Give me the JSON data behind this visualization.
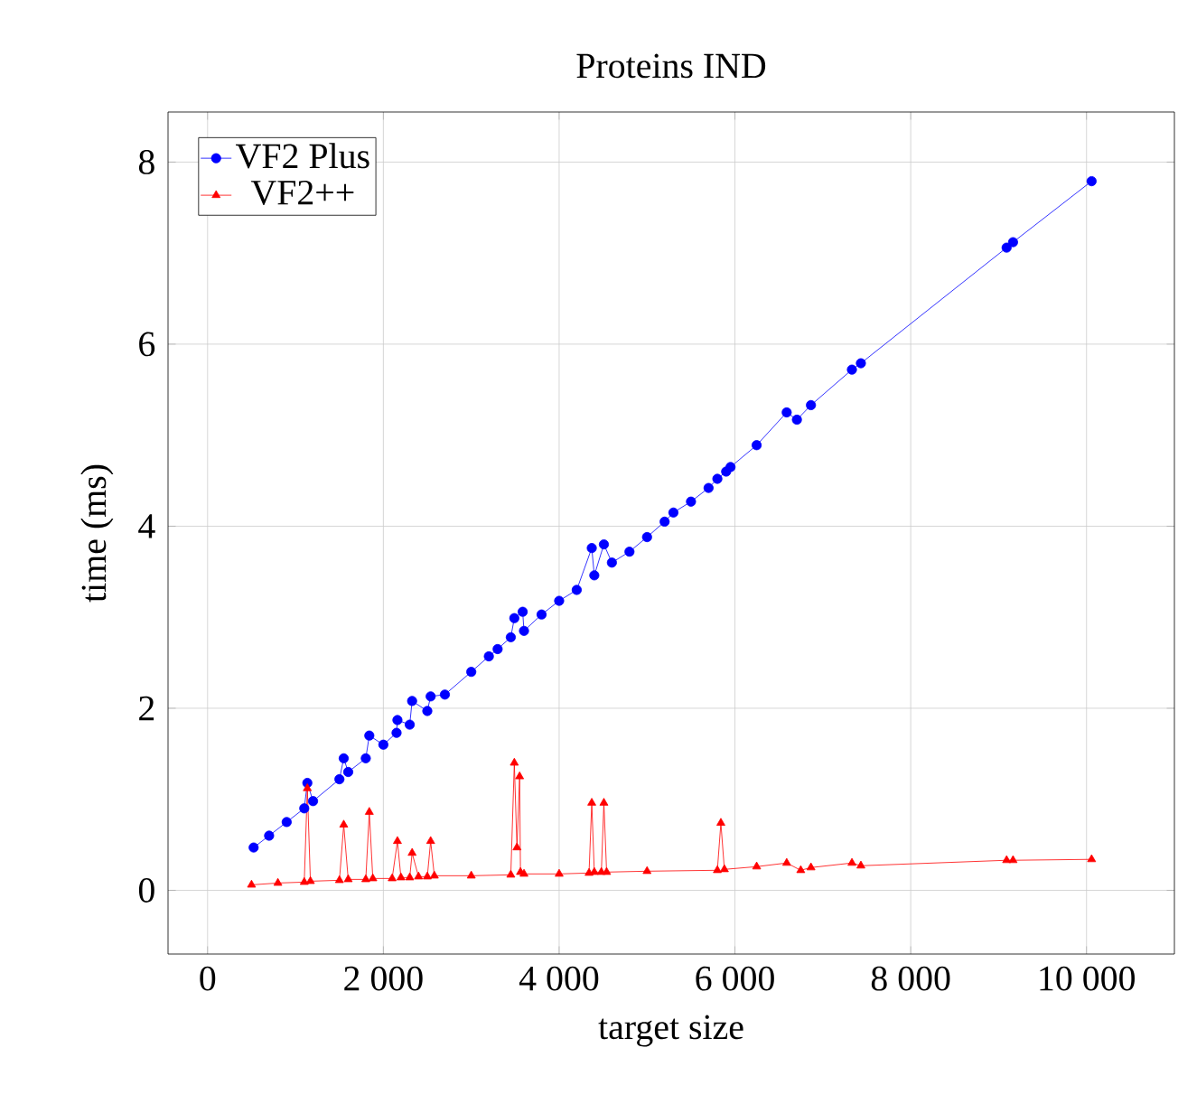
{
  "chart_data": {
    "type": "line",
    "title": "Proteins IND",
    "xlabel": "target size",
    "ylabel": "time (ms)",
    "xlim": [
      -450,
      11000
    ],
    "ylim": [
      -0.7,
      8.55
    ],
    "xticks": [
      0,
      {
        "value": 2000,
        "label": "2 000"
      },
      {
        "value": 4000,
        "label": "4 000"
      },
      {
        "value": 6000,
        "label": "6 000"
      },
      {
        "value": 8000,
        "label": "8 000"
      },
      {
        "value": 10000,
        "label": "10 000"
      }
    ],
    "yticks": [
      0,
      2,
      4,
      6,
      8
    ],
    "grid": true,
    "legend": "top left",
    "series": [
      {
        "name": "VF2 Plus",
        "color": "#0000ff",
        "marker": "circle",
        "x": [
          524,
          700,
          900,
          1100,
          1135,
          1200,
          1500,
          1549,
          1600,
          1800,
          1840,
          2000,
          2150,
          2160,
          2300,
          2327,
          2500,
          2538,
          2700,
          3000,
          3200,
          3300,
          3450,
          3490,
          3585,
          3600,
          3800,
          4000,
          4200,
          4371,
          4400,
          4509,
          4600,
          4800,
          5000,
          5200,
          5300,
          5500,
          5700,
          5800,
          5900,
          5950,
          6247,
          6589,
          6705,
          6865,
          7331,
          7433,
          9091,
          9164,
          10058
        ],
        "values": [
          0.47,
          0.6,
          0.75,
          0.9,
          1.18,
          0.98,
          1.22,
          1.45,
          1.3,
          1.45,
          1.7,
          1.6,
          1.73,
          1.87,
          1.82,
          2.08,
          1.97,
          2.13,
          2.15,
          2.4,
          2.57,
          2.65,
          2.78,
          2.99,
          3.06,
          2.85,
          3.03,
          3.18,
          3.3,
          3.76,
          3.46,
          3.8,
          3.6,
          3.72,
          3.88,
          4.05,
          4.15,
          4.27,
          4.42,
          4.52,
          4.6,
          4.65,
          4.89,
          5.25,
          5.17,
          5.33,
          5.72,
          5.79,
          7.06,
          7.12,
          7.79
        ]
      },
      {
        "name": "VF2++",
        "color": "#ff0000",
        "marker": "triangle",
        "x": [
          500,
          800,
          1100,
          1135,
          1170,
          1500,
          1549,
          1600,
          1800,
          1840,
          1880,
          2100,
          2160,
          2200,
          2300,
          2327,
          2400,
          2500,
          2538,
          2580,
          3000,
          3450,
          3490,
          3520,
          3550,
          3560,
          3600,
          4000,
          4340,
          4371,
          4400,
          4480,
          4509,
          4540,
          5000,
          5800,
          5840,
          5880,
          6247,
          6589,
          6749,
          6865,
          7331,
          7433,
          9091,
          9164,
          10058
        ],
        "values": [
          0.06,
          0.08,
          0.09,
          1.12,
          0.1,
          0.11,
          0.72,
          0.12,
          0.12,
          0.86,
          0.13,
          0.13,
          0.54,
          0.14,
          0.14,
          0.41,
          0.15,
          0.15,
          0.54,
          0.16,
          0.16,
          0.17,
          1.4,
          0.47,
          1.25,
          0.2,
          0.18,
          0.18,
          0.19,
          0.96,
          0.2,
          0.2,
          0.96,
          0.2,
          0.21,
          0.22,
          0.74,
          0.23,
          0.26,
          0.3,
          0.22,
          0.25,
          0.3,
          0.27,
          0.33,
          0.33,
          0.34
        ]
      }
    ]
  }
}
